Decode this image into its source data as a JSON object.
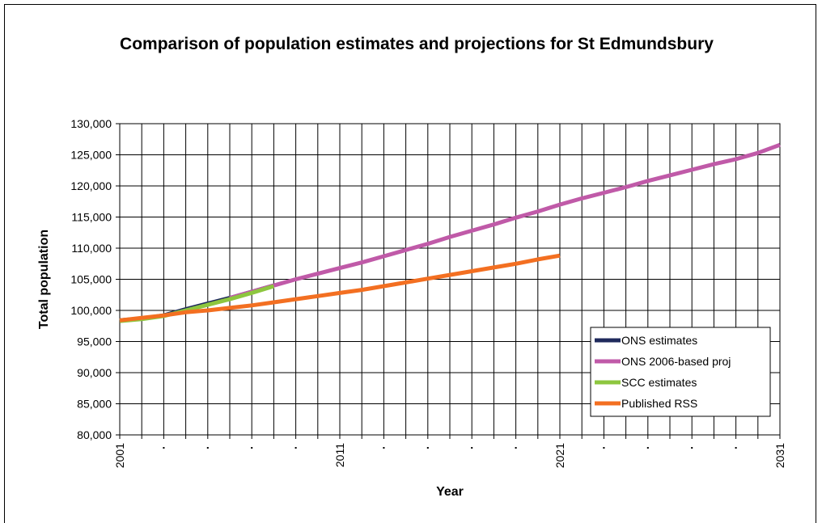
{
  "chart_data": {
    "type": "line",
    "title": "Comparison of population estimates and projections for St Edmundsbury",
    "xlabel": "Year",
    "ylabel": "Total population",
    "xlim": [
      2001,
      2031
    ],
    "ylim": [
      80000,
      130000
    ],
    "x_ticks": [
      2001,
      2011,
      2021,
      2031
    ],
    "y_ticks": [
      "80,000",
      "85,000",
      "90,000",
      "95,000",
      "100,000",
      "105,000",
      "110,000",
      "115,000",
      "120,000",
      "125,000",
      "130,000"
    ],
    "grid": true,
    "legend_position": "bottom-right",
    "series": [
      {
        "name": "ONS estimates",
        "color": "#1f2a5c",
        "x": [
          2001,
          2002,
          2003,
          2004,
          2005,
          2006,
          2007,
          2008
        ],
        "y": [
          98400,
          98700,
          99200,
          100200,
          101100,
          102000,
          103000,
          104000
        ]
      },
      {
        "name": "ONS 2006-based proj",
        "color": "#c05aa8",
        "x": [
          2006,
          2007,
          2008,
          2009,
          2010,
          2011,
          2012,
          2013,
          2014,
          2015,
          2016,
          2017,
          2018,
          2019,
          2020,
          2021,
          2022,
          2023,
          2024,
          2025,
          2026,
          2027,
          2028,
          2029,
          2030,
          2031
        ],
        "y": [
          102000,
          103000,
          104000,
          105000,
          105900,
          106800,
          107700,
          108700,
          109700,
          110700,
          111800,
          112800,
          113800,
          114900,
          115900,
          117000,
          118000,
          118900,
          119800,
          120800,
          121700,
          122600,
          123500,
          124300,
          125300,
          126600
        ]
      },
      {
        "name": "SCC estimates",
        "color": "#8dc63f",
        "x": [
          2001,
          2002,
          2003,
          2004,
          2005,
          2006,
          2007,
          2008
        ],
        "y": [
          98300,
          98600,
          99100,
          100000,
          100900,
          101800,
          102800,
          103900
        ]
      },
      {
        "name": "Published RSS",
        "color": "#f36f21",
        "x": [
          2001,
          2002,
          2003,
          2004,
          2005,
          2006,
          2007,
          2008,
          2009,
          2010,
          2011,
          2012,
          2013,
          2014,
          2015,
          2016,
          2017,
          2018,
          2019,
          2020,
          2021
        ],
        "y": [
          98400,
          98800,
          99200,
          99700,
          100000,
          100400,
          100800,
          101300,
          101800,
          102300,
          102800,
          103300,
          103900,
          104500,
          105100,
          105700,
          106300,
          106900,
          107500,
          108200,
          108800
        ]
      }
    ]
  }
}
